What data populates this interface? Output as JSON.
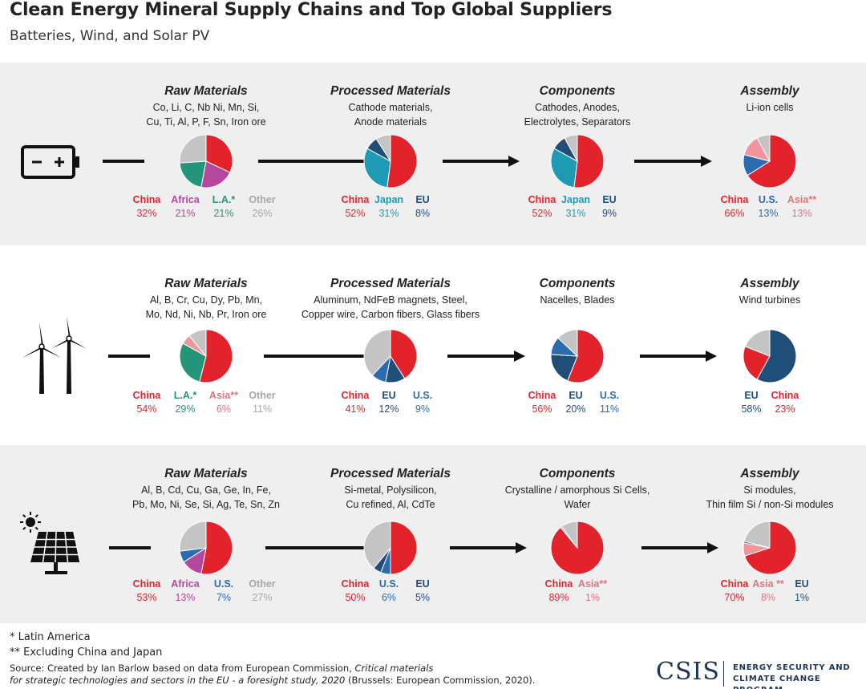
{
  "title": "Clean Energy Mineral Supply Chains and Top Global Suppliers",
  "subtitle": "Batteries, Wind, and Solar PV",
  "colors": {
    "China": "#e3232c",
    "Japan": "#1f9ab5",
    "EU": "#1f4e79",
    "US": "#2b6cb0",
    "Africa": "#b5479e",
    "LatinAmerica": "#23957a",
    "Asia": "#f0959c",
    "Other": "#c4c4c4",
    "panel": "#efefef"
  },
  "rows": [
    {
      "name": "batteries",
      "icon": "battery-icon",
      "stages": [
        {
          "title": "Raw Materials",
          "lines": [
            "Co, Li, C, Nb Ni, Mn, Si,",
            "Cu, Ti, Al, P, F, Sn, Iron ore"
          ],
          "slices": [
            {
              "label": "China",
              "pct": "32%",
              "value": 32,
              "color": "China"
            },
            {
              "label": "Africa",
              "pct": "21%",
              "value": 21,
              "color": "Africa"
            },
            {
              "label": "L.A.*",
              "pct": "21%",
              "value": 21,
              "color": "LatinAmerica"
            },
            {
              "label": "Other",
              "pct": "26%",
              "value": 26,
              "color": "Other"
            }
          ]
        },
        {
          "title": "Processed Materials",
          "lines": [
            "Cathode materials,",
            "Anode materials"
          ],
          "slices": [
            {
              "label": "China",
              "pct": "52%",
              "value": 52,
              "color": "China"
            },
            {
              "label": "Japan",
              "pct": "31%",
              "value": 31,
              "color": "Japan"
            },
            {
              "label": "EU",
              "pct": "8%",
              "value": 8,
              "color": "EU"
            }
          ]
        },
        {
          "title": "Components",
          "lines": [
            "Cathodes, Anodes,",
            "Electrolytes, Separators"
          ],
          "slices": [
            {
              "label": "China",
              "pct": "52%",
              "value": 52,
              "color": "China"
            },
            {
              "label": "Japan",
              "pct": "31%",
              "value": 31,
              "color": "Japan"
            },
            {
              "label": "EU",
              "pct": "9%",
              "value": 9,
              "color": "EU"
            }
          ]
        },
        {
          "title": "Assembly",
          "lines": [
            "Li-ion cells"
          ],
          "slices": [
            {
              "label": "China",
              "pct": "66%",
              "value": 66,
              "color": "China"
            },
            {
              "label": "U.S.",
              "pct": "13%",
              "value": 13,
              "color": "US"
            },
            {
              "label": "Asia**",
              "pct": "13%",
              "value": 13,
              "color": "Asia"
            }
          ]
        }
      ]
    },
    {
      "name": "wind",
      "icon": "wind-turbine-icon",
      "stages": [
        {
          "title": "Raw Materials",
          "lines": [
            "Al, B, Cr, Cu, Dy, Pb, Mn,",
            "Mo, Nd, Ni, Nb, Pr, Iron ore"
          ],
          "slices": [
            {
              "label": "China",
              "pct": "54%",
              "value": 54,
              "color": "China"
            },
            {
              "label": "L.A.*",
              "pct": "29%",
              "value": 29,
              "color": "LatinAmerica"
            },
            {
              "label": "Asia**",
              "pct": "6%",
              "value": 6,
              "color": "Asia"
            },
            {
              "label": "Other",
              "pct": "11%",
              "value": 11,
              "color": "Other"
            }
          ]
        },
        {
          "title": "Processed Materials",
          "lines": [
            "Aluminum, NdFeB magnets, Steel,",
            "Copper wire, Carbon fibers, Glass fibers"
          ],
          "slices": [
            {
              "label": "China",
              "pct": "41%",
              "value": 41,
              "color": "China"
            },
            {
              "label": "EU",
              "pct": "12%",
              "value": 12,
              "color": "EU"
            },
            {
              "label": "U.S.",
              "pct": "9%",
              "value": 9,
              "color": "US"
            }
          ]
        },
        {
          "title": "Components",
          "lines": [
            "Nacelles, Blades"
          ],
          "slices": [
            {
              "label": "China",
              "pct": "56%",
              "value": 56,
              "color": "China"
            },
            {
              "label": "EU",
              "pct": "20%",
              "value": 20,
              "color": "EU"
            },
            {
              "label": "U.S.",
              "pct": "11%",
              "value": 11,
              "color": "US"
            }
          ]
        },
        {
          "title": "Assembly",
          "lines": [
            "Wind turbines"
          ],
          "slices": [
            {
              "label": "EU",
              "pct": "58%",
              "value": 58,
              "color": "EU"
            },
            {
              "label": "China",
              "pct": "23%",
              "value": 23,
              "color": "China"
            }
          ]
        }
      ]
    },
    {
      "name": "solar",
      "icon": "solar-panel-icon",
      "stages": [
        {
          "title": "Raw Materials",
          "lines": [
            "Al, B, Cd, Cu, Ga, Ge, In, Fe,",
            "Pb, Mo, Ni, Se, Si, Ag, Te, Sn, Zn"
          ],
          "slices": [
            {
              "label": "China",
              "pct": "53%",
              "value": 53,
              "color": "China"
            },
            {
              "label": "Africa",
              "pct": "13%",
              "value": 13,
              "color": "Africa"
            },
            {
              "label": "U.S.",
              "pct": "7%",
              "value": 7,
              "color": "US"
            },
            {
              "label": "Other",
              "pct": "27%",
              "value": 27,
              "color": "Other"
            }
          ]
        },
        {
          "title": "Processed Materials",
          "lines": [
            "Si-metal, Polysilicon,",
            "Cu refined, Al, CdTe"
          ],
          "slices": [
            {
              "label": "China",
              "pct": "50%",
              "value": 50,
              "color": "China"
            },
            {
              "label": "U.S.",
              "pct": "6%",
              "value": 6,
              "color": "US"
            },
            {
              "label": "EU",
              "pct": "5%",
              "value": 5,
              "color": "EU"
            }
          ]
        },
        {
          "title": "Components",
          "lines": [
            "Crystalline / amorphous Si Cells,",
            "Wafer"
          ],
          "slices": [
            {
              "label": "China",
              "pct": "89%",
              "value": 89,
              "color": "China"
            },
            {
              "label": "Asia**",
              "pct": "1%",
              "value": 1,
              "color": "Asia"
            }
          ]
        },
        {
          "title": "Assembly",
          "lines": [
            "Si modules,",
            "Thin film Si / non-Si modules"
          ],
          "slices": [
            {
              "label": "China",
              "pct": "70%",
              "value": 70,
              "color": "China"
            },
            {
              "label": "Asia **",
              "pct": "8%",
              "value": 8,
              "color": "Asia"
            },
            {
              "label": "EU",
              "pct": "1%",
              "value": 1,
              "color": "EU"
            }
          ]
        }
      ]
    }
  ],
  "footnotes": [
    "* Latin America",
    "** Excluding China and Japan"
  ],
  "source": {
    "prefix": "Source: Created by Ian Barlow based on data from European Commission, ",
    "italic1": "Critical materials",
    "italic2": "for strategic technologies and sectors in the EU - a foresight study, 2020",
    "suffix": " (Brussels:  European Commission, 2020)."
  },
  "logo": "CSIS",
  "program": [
    "ENERGY SECURITY AND",
    "CLIMATE CHANGE PROGRAM"
  ]
}
